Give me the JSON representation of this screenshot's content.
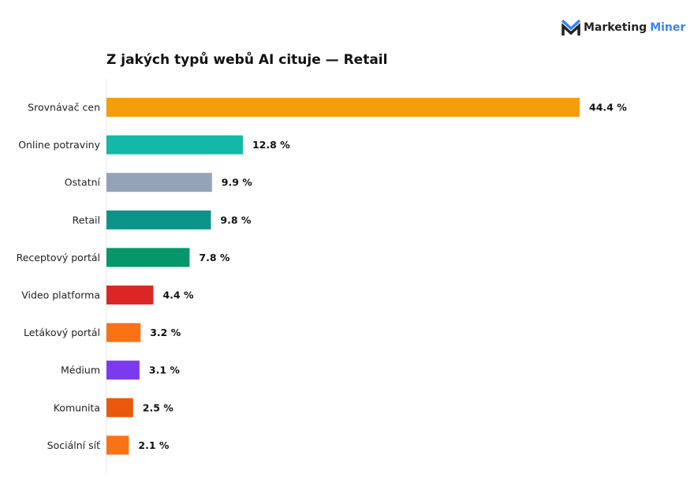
{
  "logo": {
    "text_dark": "Marketing",
    "text_blue": "Miner"
  },
  "chart_data": {
    "type": "bar",
    "orientation": "horizontal",
    "title": "Z jakých typů webů AI cituje — Retail",
    "categories": [
      "Srovnávač cen",
      "Online potraviny",
      "Ostatní",
      "Retail",
      "Receptový portál",
      "Video platforma",
      "Letákový portál",
      "Médium",
      "Komunita",
      "Sociální síť"
    ],
    "values": [
      44.4,
      12.8,
      9.9,
      9.8,
      7.8,
      4.4,
      3.2,
      3.1,
      2.5,
      2.1
    ],
    "value_labels": [
      "44.4 %",
      "12.8 %",
      "9.9 %",
      "9.8 %",
      "7.8 %",
      "4.4 %",
      "3.2 %",
      "3.1 %",
      "2.5 %",
      "2.1 %"
    ],
    "colors": [
      "#F59E0B",
      "#14B8A6",
      "#94A3B8",
      "#0D9488",
      "#059669",
      "#DC2626",
      "#F97316",
      "#7C3AED",
      "#EA580C",
      "#F97316"
    ],
    "xlim": [
      0,
      44.4
    ],
    "grid": false,
    "legend": "none"
  }
}
